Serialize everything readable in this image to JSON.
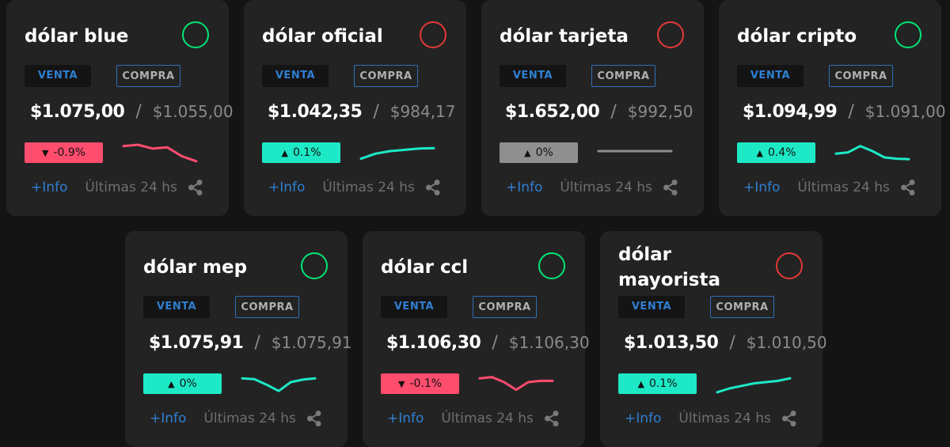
{
  "ui": {
    "venta_label": "VENTA",
    "compra_label": "COMPRA",
    "info_label": "+Info",
    "last24_label": "Últimas 24 hs",
    "separator": "/"
  },
  "colors": {
    "up": "#1de9c6",
    "down": "#ff4d6d",
    "flat": "#8f8f8f",
    "status_up": "#00e676",
    "status_down": "#e53935",
    "accent_blue": "#2f7fd1"
  },
  "cards": [
    {
      "id": "blue",
      "title": "dólar blue",
      "status": "up",
      "venta": "$1.075,00",
      "compra": "$1.055,00",
      "change": "-0.9%",
      "trend": "down",
      "spark": [
        0.7,
        0.75,
        0.6,
        0.65,
        0.3,
        0.1
      ]
    },
    {
      "id": "oficial",
      "title": "dólar oficial",
      "status": "down",
      "venta": "$1.042,35",
      "compra": "$984,17",
      "change": "0.1%",
      "trend": "up",
      "spark": [
        0.2,
        0.4,
        0.5,
        0.55,
        0.6,
        0.62
      ]
    },
    {
      "id": "tarjeta",
      "title": "dólar tarjeta",
      "status": "down",
      "venta": "$1.652,00",
      "compra": "$992,50",
      "change": "0%",
      "trend": "flat",
      "spark": [
        0.5,
        0.5,
        0.5,
        0.5,
        0.5,
        0.5
      ]
    },
    {
      "id": "cripto",
      "title": "dólar cripto",
      "status": "up",
      "venta": "$1.094,99",
      "compra": "$1.091,00",
      "change": "0.4%",
      "trend": "up",
      "spark": [
        0.4,
        0.45,
        0.7,
        0.5,
        0.25,
        0.2,
        0.18
      ]
    },
    {
      "id": "mep",
      "title": "dólar mep",
      "status": "up",
      "venta": "$1.075,91",
      "compra": "$1.075,91",
      "change": "0%",
      "trend": "up",
      "spark": [
        0.65,
        0.62,
        0.4,
        0.15,
        0.5,
        0.6,
        0.65
      ]
    },
    {
      "id": "ccl",
      "title": "dólar ccl",
      "status": "up",
      "venta": "$1.106,30",
      "compra": "$1.106,30",
      "change": "-0.1%",
      "trend": "down",
      "spark": [
        0.65,
        0.7,
        0.5,
        0.2,
        0.5,
        0.55,
        0.55
      ]
    },
    {
      "id": "mayorista",
      "title": "dólar mayorista",
      "status": "down",
      "venta": "$1.013,50",
      "compra": "$1.010,50",
      "change": "0.1%",
      "trend": "up",
      "spark": [
        0.1,
        0.25,
        0.35,
        0.45,
        0.5,
        0.55,
        0.65
      ]
    }
  ]
}
